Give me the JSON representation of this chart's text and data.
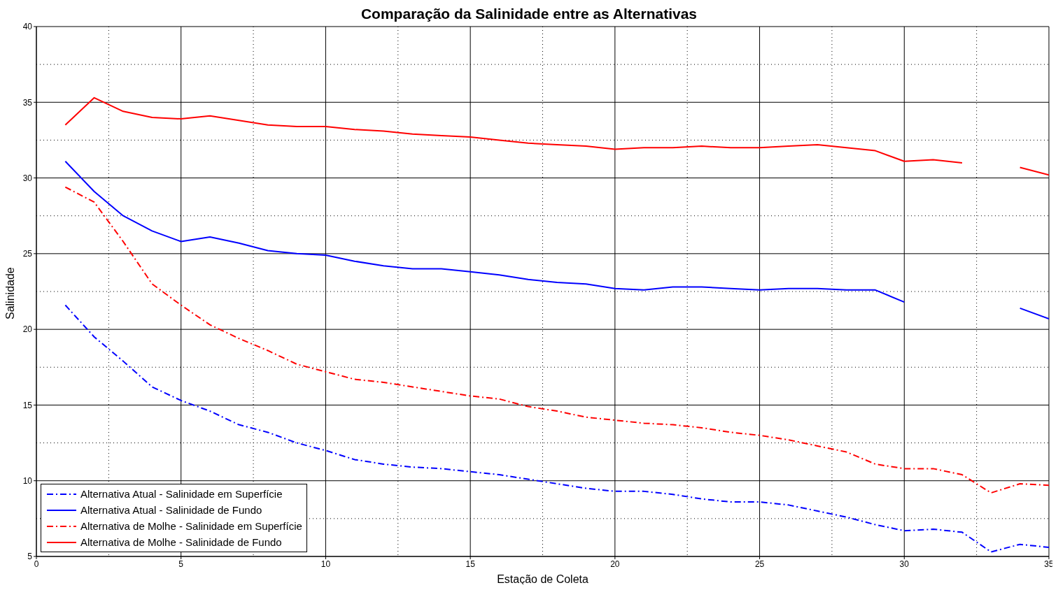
{
  "chart_data": {
    "type": "line",
    "title": "Comparação da Salinidade entre as Alternativas",
    "xlabel": "Estação de Coleta",
    "ylabel": "Salinidade",
    "x": [
      1,
      2,
      3,
      4,
      5,
      6,
      7,
      8,
      9,
      10,
      11,
      12,
      13,
      14,
      15,
      16,
      17,
      18,
      19,
      20,
      21,
      22,
      23,
      24,
      25,
      26,
      27,
      28,
      29,
      30,
      31,
      32,
      33,
      34,
      35
    ],
    "series": [
      {
        "name": "Alternativa Atual - Salinidade em Superfície",
        "color": "#0000ff",
        "line_style": "dashed",
        "values": [
          21.6,
          19.5,
          17.9,
          16.2,
          15.3,
          14.6,
          13.7,
          13.2,
          12.5,
          12.0,
          11.4,
          11.1,
          10.9,
          10.8,
          10.6,
          10.4,
          10.1,
          9.8,
          9.5,
          9.3,
          9.3,
          9.1,
          8.8,
          8.6,
          8.6,
          8.4,
          8.0,
          7.6,
          7.1,
          6.7,
          6.8,
          6.6,
          5.3,
          5.8,
          5.6
        ]
      },
      {
        "name": "Alternativa Atual - Salinidade de Fundo",
        "color": "#0000ff",
        "line_style": "solid",
        "values": [
          31.1,
          29.1,
          27.5,
          26.5,
          25.8,
          26.1,
          25.7,
          25.2,
          25.0,
          24.9,
          24.5,
          24.2,
          24.0,
          24.0,
          23.8,
          23.6,
          23.3,
          23.1,
          23.0,
          22.7,
          22.6,
          22.8,
          22.8,
          22.7,
          22.6,
          22.7,
          22.7,
          22.6,
          22.6,
          21.8,
          null,
          null,
          null,
          21.4,
          20.7
        ]
      },
      {
        "name": "Alternativa de Molhe - Salinidade em Superfície",
        "color": "#ff0000",
        "line_style": "dashed",
        "values": [
          29.4,
          28.4,
          25.8,
          23.0,
          21.6,
          20.3,
          19.4,
          18.6,
          17.7,
          17.2,
          16.7,
          16.5,
          16.2,
          15.9,
          15.6,
          15.4,
          14.9,
          14.6,
          14.2,
          14.0,
          13.8,
          13.7,
          13.5,
          13.2,
          13.0,
          12.7,
          12.3,
          11.9,
          11.1,
          10.8,
          10.8,
          10.4,
          9.2,
          9.8,
          9.7
        ]
      },
      {
        "name": "Alternativa de Molhe - Salinidade de Fundo",
        "color": "#ff0000",
        "line_style": "solid",
        "values": [
          33.5,
          35.3,
          34.4,
          34.0,
          33.9,
          34.1,
          33.8,
          33.5,
          33.4,
          33.4,
          33.2,
          33.1,
          32.9,
          32.8,
          32.7,
          32.5,
          32.3,
          32.2,
          32.1,
          31.9,
          32.0,
          32.0,
          32.1,
          32.0,
          32.0,
          32.1,
          32.2,
          32.0,
          31.8,
          31.1,
          31.2,
          31.0,
          null,
          30.7,
          30.2
        ]
      }
    ],
    "xlim": [
      0,
      35
    ],
    "xticks": [
      0,
      5,
      10,
      15,
      20,
      25,
      30,
      35
    ],
    "ylim": [
      5,
      40
    ],
    "yticks": [
      5,
      10,
      15,
      20,
      25,
      30,
      35,
      40
    ],
    "grid": true,
    "legend": "bottom left",
    "marker": "none"
  }
}
